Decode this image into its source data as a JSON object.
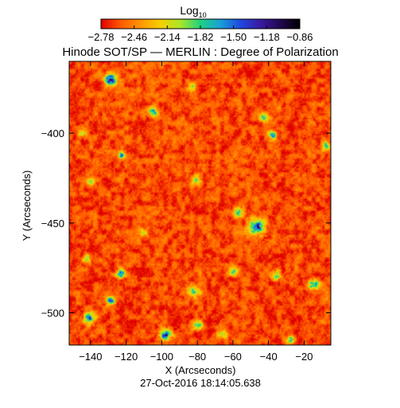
{
  "chart_data": {
    "type": "heatmap",
    "title": "Hinode SOT/SP — MERLIN : Degree of Polarization",
    "xlabel": "X (Arcseconds)",
    "ylabel": "Y (Arcseconds)",
    "timestamp": "27-Oct-2016 18:14:05.638",
    "colorbar": {
      "label": "Log",
      "label_subscript": "10",
      "tick_labels": [
        "−2.78",
        "−2.46",
        "−2.14",
        "−1.82",
        "−1.50",
        "−1.18",
        "−0.86"
      ],
      "range": [
        -2.78,
        -0.86
      ],
      "colormap": [
        "#e00000",
        "#ff5a00",
        "#ff9600",
        "#f5d000",
        "#a8e62a",
        "#20d280",
        "#18a0d8",
        "#1d48e0",
        "#3a1aa0",
        "#200850",
        "#000000"
      ]
    },
    "xlim": [
      -152,
      -5
    ],
    "ylim": [
      -518,
      -360
    ],
    "xticks": [
      {
        "value": -140,
        "label": "−140"
      },
      {
        "value": -120,
        "label": "−120"
      },
      {
        "value": -100,
        "label": "−100"
      },
      {
        "value": -80,
        "label": "−80"
      },
      {
        "value": -60,
        "label": "−60"
      },
      {
        "value": -40,
        "label": "−40"
      },
      {
        "value": -20,
        "label": "−20"
      }
    ],
    "yticks": [
      {
        "value": -400,
        "label": "−400"
      },
      {
        "value": -450,
        "label": "−450"
      },
      {
        "value": -500,
        "label": "−500"
      }
    ],
    "field": {
      "background_level": -2.62,
      "hotspots": [
        {
          "x": -129,
          "y": -370,
          "strength": 1.3,
          "radius": 3.4
        },
        {
          "x": -105,
          "y": -388,
          "strength": 0.9,
          "radius": 2.6
        },
        {
          "x": -83,
          "y": -374,
          "strength": 0.6,
          "radius": 2.2
        },
        {
          "x": -43,
          "y": -391,
          "strength": 0.8,
          "radius": 2.4
        },
        {
          "x": -140,
          "y": -427,
          "strength": 0.6,
          "radius": 2.4
        },
        {
          "x": -123,
          "y": -412,
          "strength": 0.9,
          "radius": 2.2
        },
        {
          "x": -81,
          "y": -426,
          "strength": 0.7,
          "radius": 2.6
        },
        {
          "x": -38,
          "y": -401,
          "strength": 0.9,
          "radius": 2.4
        },
        {
          "x": -8,
          "y": -407,
          "strength": 1.0,
          "radius": 2.2
        },
        {
          "x": -47,
          "y": -452,
          "strength": 1.3,
          "radius": 4.2
        },
        {
          "x": -57,
          "y": -444,
          "strength": 0.8,
          "radius": 2.8
        },
        {
          "x": -123,
          "y": -478,
          "strength": 1.0,
          "radius": 2.6
        },
        {
          "x": -142,
          "y": -470,
          "strength": 0.7,
          "radius": 2.2
        },
        {
          "x": -82,
          "y": -488,
          "strength": 0.9,
          "radius": 3.0
        },
        {
          "x": -60,
          "y": -477,
          "strength": 0.7,
          "radius": 2.4
        },
        {
          "x": -36,
          "y": -479,
          "strength": 0.8,
          "radius": 2.6
        },
        {
          "x": -15,
          "y": -484,
          "strength": 1.1,
          "radius": 2.8
        },
        {
          "x": -98,
          "y": -512,
          "strength": 1.3,
          "radius": 3.2
        },
        {
          "x": -80,
          "y": -507,
          "strength": 0.8,
          "radius": 2.4
        },
        {
          "x": -141,
          "y": -503,
          "strength": 1.2,
          "radius": 3.0
        },
        {
          "x": -129,
          "y": -493,
          "strength": 1.0,
          "radius": 2.4
        },
        {
          "x": -110,
          "y": -455,
          "strength": 0.6,
          "radius": 2.2
        },
        {
          "x": -28,
          "y": -515,
          "strength": 0.9,
          "radius": 2.4
        },
        {
          "x": -66,
          "y": -512,
          "strength": 0.7,
          "radius": 2.2
        },
        {
          "x": -145,
          "y": -400,
          "strength": 0.6,
          "radius": 2.0
        }
      ]
    },
    "grid": false
  }
}
